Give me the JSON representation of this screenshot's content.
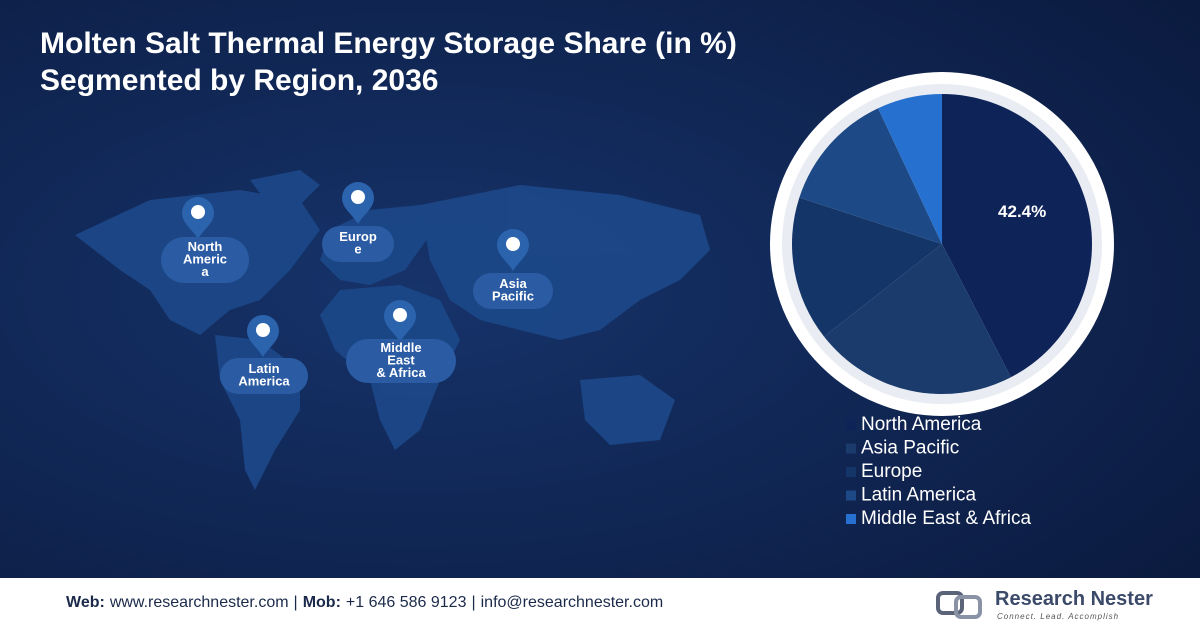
{
  "title": [
    "Molten Salt Thermal Energy Storage Share (in %)",
    "Segmented by Region, 2036"
  ],
  "chart_data": {
    "type": "pie",
    "categories": [
      "North America",
      "Asia Pacific",
      "Europe",
      "Latin America",
      "Middle East & Africa"
    ],
    "values": [
      42.4,
      22,
      15.6,
      13,
      7
    ],
    "value_labels": [
      "42.4%",
      null,
      null,
      null,
      null
    ],
    "colors": [
      "#0e2459",
      "#1a3b6c",
      "#143567",
      "#1d4a86",
      "#2670cf"
    ],
    "legend": "bottom"
  },
  "map_labels": [
    {
      "lines": [
        "North",
        "Americ",
        "a"
      ]
    },
    {
      "lines": [
        "Europ",
        "e"
      ]
    },
    {
      "lines": [
        "Asia",
        "Pacific"
      ]
    },
    {
      "lines": [
        "Latin",
        "America"
      ]
    },
    {
      "lines": [
        "Middle",
        "East",
        "& Africa"
      ]
    }
  ],
  "footer": {
    "items": [
      {
        "text": "Web:",
        "bold": true
      },
      {
        "text": "www.researchnester.com",
        "bold": false
      },
      {
        "text": "|",
        "bold": false
      },
      {
        "text": "Mob:",
        "bold": true
      },
      {
        "text": "+1 646 586 9123",
        "bold": false
      },
      {
        "text": "|",
        "bold": false
      },
      {
        "text": "info@researchnester.com",
        "bold": false
      }
    ]
  },
  "logo": {
    "name": "Research Nester",
    "tagline": "Connect. Lead. Accomplish"
  }
}
